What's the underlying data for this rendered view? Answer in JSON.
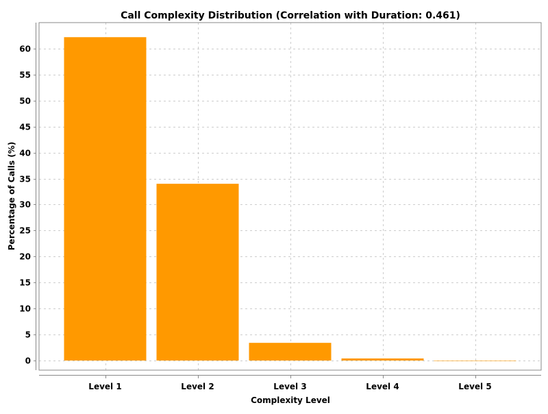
{
  "chart_data": {
    "type": "bar",
    "title": "Call Complexity Distribution (Correlation with Duration: 0.461)",
    "xlabel": "Complexity Level",
    "ylabel": "Percentage of Calls (%)",
    "categories": [
      "Level 1",
      "Level 2",
      "Level 3",
      "Level 4",
      "Level 5"
    ],
    "values": [
      62.2,
      34.0,
      3.4,
      0.4,
      0.0
    ],
    "ylim": [
      -1.85,
      65
    ],
    "yticks": [
      0,
      5,
      10,
      15,
      20,
      25,
      30,
      35,
      40,
      45,
      50,
      55,
      60
    ],
    "grid": true,
    "legend": "none",
    "bar_color": "#ff9900"
  }
}
